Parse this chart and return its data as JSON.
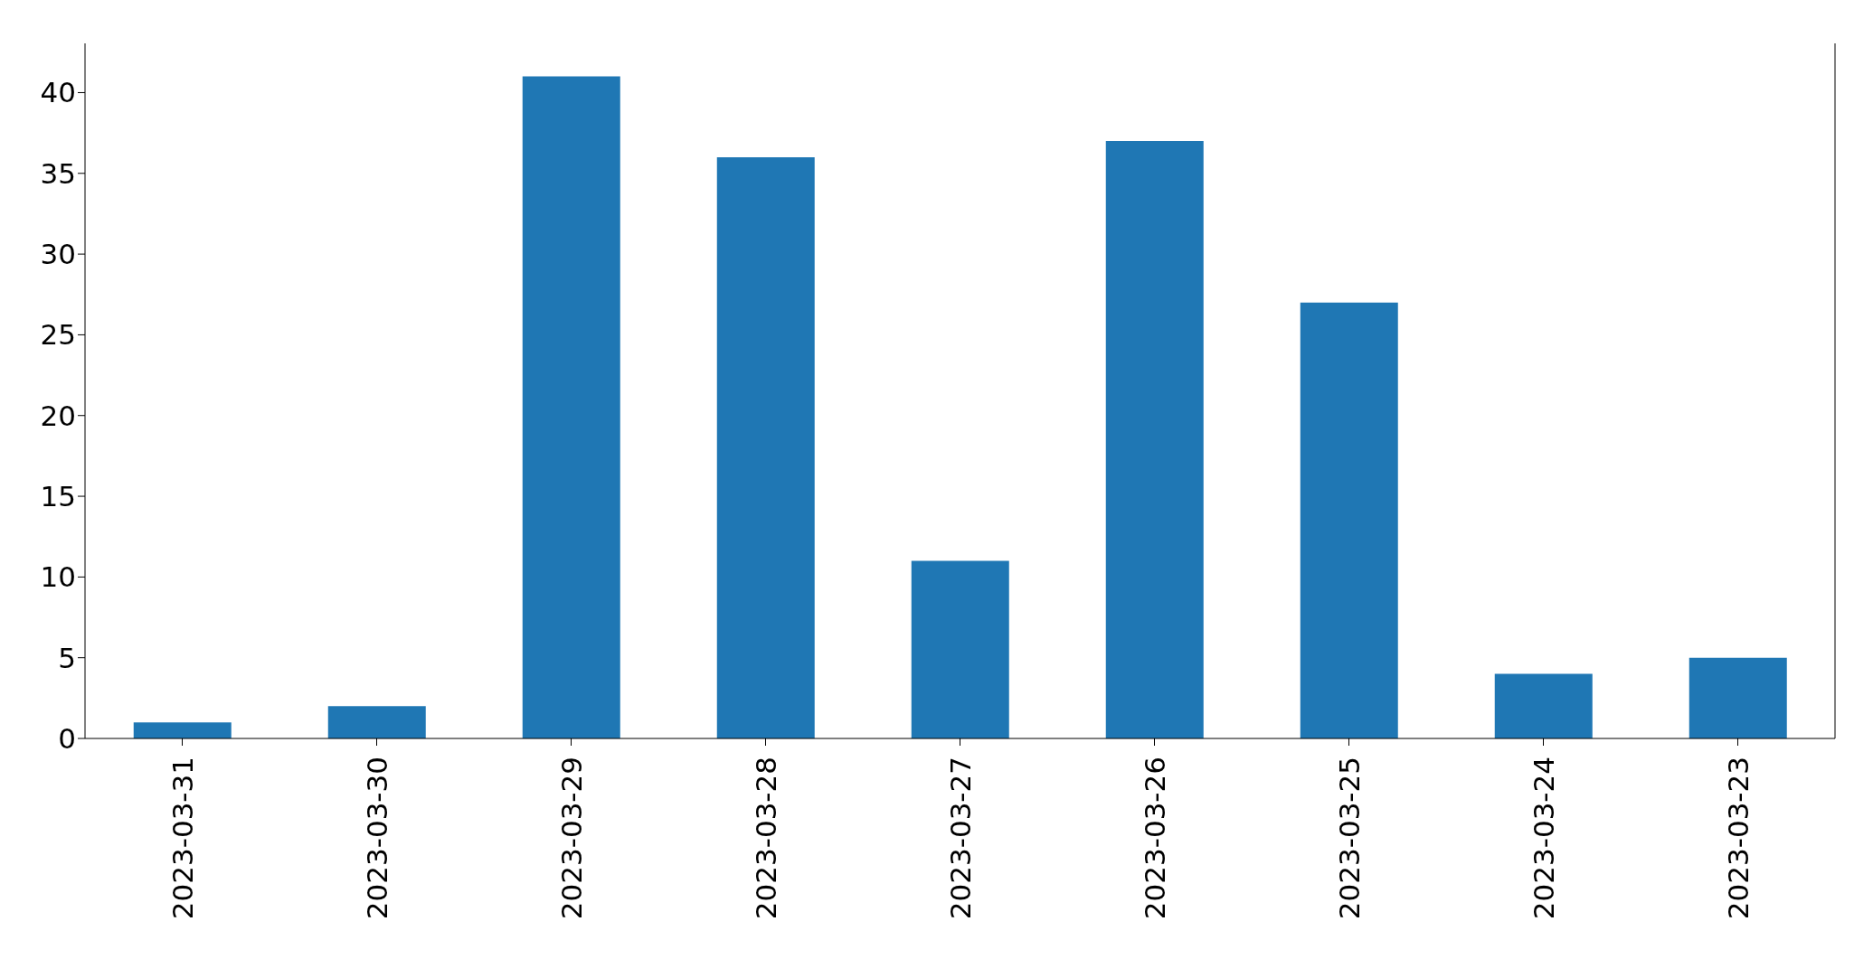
{
  "chart_data": {
    "type": "bar",
    "categories": [
      "2023-03-31",
      "2023-03-30",
      "2023-03-29",
      "2023-03-28",
      "2023-03-27",
      "2023-03-26",
      "2023-03-25",
      "2023-03-24",
      "2023-03-23"
    ],
    "values": [
      1,
      2,
      41,
      36,
      11,
      37,
      27,
      4,
      5
    ],
    "color": "#1f77b4",
    "ylim": [
      0,
      43.05
    ],
    "yticks": [
      0,
      5,
      10,
      15,
      20,
      25,
      30,
      35,
      40
    ],
    "grid": false,
    "legend": false
  }
}
